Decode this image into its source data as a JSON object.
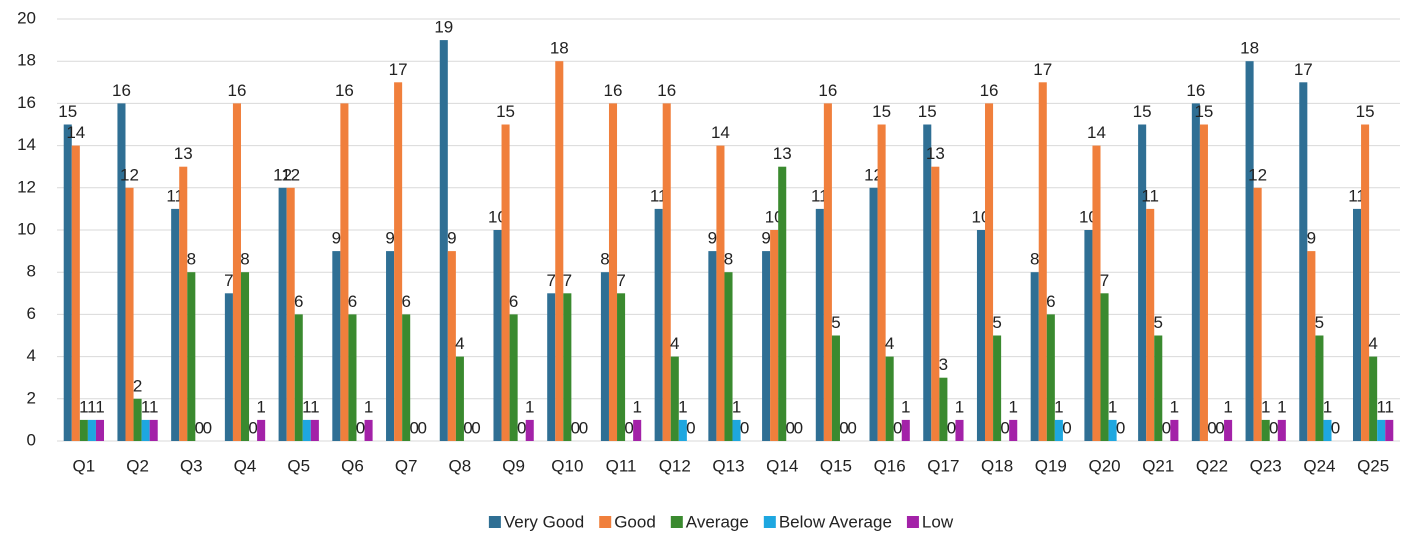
{
  "chart_data": {
    "type": "bar",
    "categories": [
      "Q1",
      "Q2",
      "Q3",
      "Q4",
      "Q5",
      "Q6",
      "Q7",
      "Q8",
      "Q9",
      "Q10",
      "Q11",
      "Q12",
      "Q13",
      "Q14",
      "Q15",
      "Q16",
      "Q17",
      "Q18",
      "Q19",
      "Q20",
      "Q21",
      "Q22",
      "Q23",
      "Q24",
      "Q25"
    ],
    "series": [
      {
        "name": "Very Good",
        "color": "#2f6f94",
        "values": [
          15,
          16,
          11,
          7,
          12,
          9,
          9,
          19,
          10,
          7,
          8,
          11,
          9,
          9,
          11,
          12,
          15,
          10,
          8,
          10,
          15,
          16,
          18,
          17,
          11
        ]
      },
      {
        "name": "Good",
        "color": "#f07f3c",
        "values": [
          14,
          12,
          13,
          16,
          12,
          16,
          17,
          9,
          15,
          18,
          16,
          16,
          14,
          10,
          16,
          15,
          13,
          16,
          17,
          14,
          11,
          15,
          12,
          9,
          15
        ]
      },
      {
        "name": "Average",
        "color": "#3a8a2f",
        "values": [
          1,
          2,
          8,
          8,
          6,
          6,
          6,
          4,
          6,
          7,
          7,
          4,
          8,
          13,
          5,
          4,
          3,
          5,
          6,
          7,
          5,
          0,
          1,
          5,
          4
        ]
      },
      {
        "name": "Below Average",
        "color": "#1ea7e0",
        "values": [
          1,
          1,
          0,
          0,
          1,
          0,
          0,
          0,
          0,
          0,
          0,
          1,
          1,
          0,
          0,
          0,
          0,
          0,
          1,
          1,
          0,
          0,
          0,
          1,
          1
        ]
      },
      {
        "name": "Low",
        "color": "#a322a8",
        "values": [
          1,
          1,
          0,
          1,
          1,
          1,
          0,
          0,
          1,
          0,
          1,
          0,
          0,
          0,
          0,
          1,
          1,
          1,
          0,
          0,
          1,
          1,
          1,
          0,
          1
        ]
      }
    ],
    "ylim": [
      0,
      20
    ],
    "yticks": [
      0,
      2,
      4,
      6,
      8,
      10,
      12,
      14,
      16,
      18,
      20
    ],
    "grid": true,
    "legend": "bottom"
  }
}
